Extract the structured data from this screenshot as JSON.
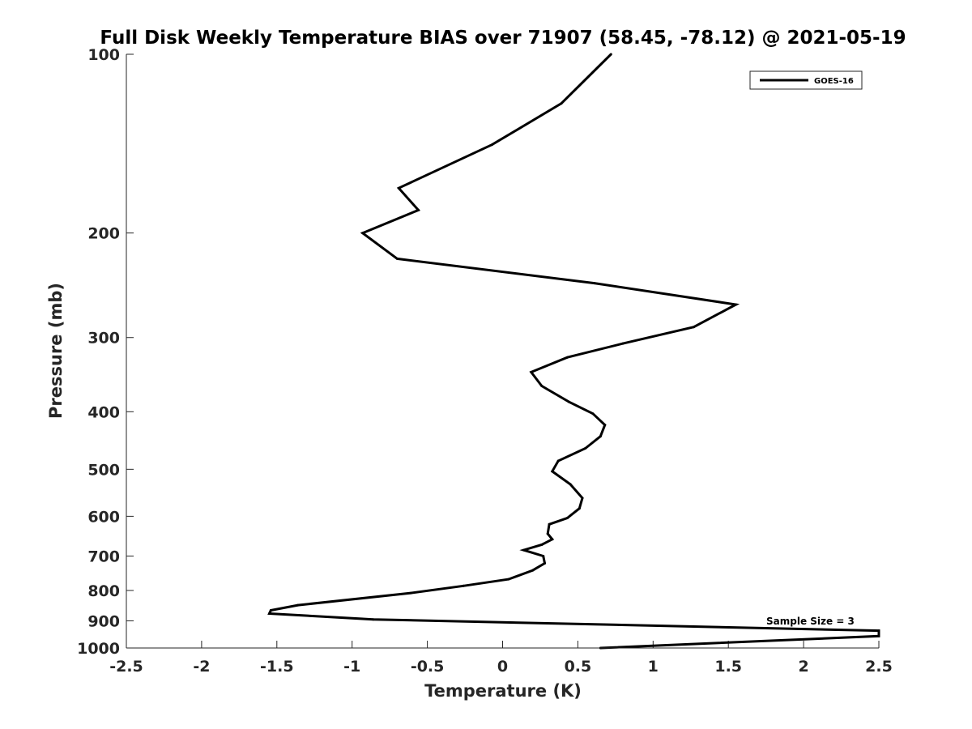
{
  "chart_data": {
    "type": "line",
    "title": "Full Disk Weekly Temperature BIAS over 71907 (58.45, -78.12) @ 2021-05-19",
    "xlabel": "Temperature (K)",
    "ylabel": "Pressure (mb)",
    "xlim": [
      -2.5,
      2.5
    ],
    "ylim": [
      100,
      1000
    ],
    "y_scale": "log",
    "y_reversed": true,
    "x_ticks": [
      "-2.5",
      "-2",
      "-1.5",
      "-1",
      "-0.5",
      "0",
      "0.5",
      "1",
      "1.5",
      "2",
      "2.5"
    ],
    "x_tick_values": [
      -2.5,
      -2,
      -1.5,
      -1,
      -0.5,
      0,
      0.5,
      1,
      1.5,
      2,
      2.5
    ],
    "y_ticks": [
      "100",
      "200",
      "300",
      "400",
      "500",
      "600",
      "700",
      "800",
      "900",
      "1000"
    ],
    "y_tick_values": [
      100,
      200,
      300,
      400,
      500,
      600,
      700,
      800,
      900,
      1000
    ],
    "grid": false,
    "legend_position": "top-right",
    "series": [
      {
        "name": "GOES-16",
        "color": "#000000",
        "points": [
          [
            0.72,
            100
          ],
          [
            0.39,
            121
          ],
          [
            -0.07,
            142
          ],
          [
            -0.69,
            168
          ],
          [
            -0.56,
            183
          ],
          [
            -0.93,
            200
          ],
          [
            -0.7,
            221
          ],
          [
            0.61,
            243
          ],
          [
            1.55,
            264
          ],
          [
            1.27,
            288
          ],
          [
            0.8,
            307
          ],
          [
            0.43,
            324
          ],
          [
            0.19,
            343
          ],
          [
            0.26,
            362
          ],
          [
            0.44,
            385
          ],
          [
            0.6,
            403
          ],
          [
            0.68,
            421
          ],
          [
            0.65,
            440
          ],
          [
            0.55,
            461
          ],
          [
            0.37,
            484
          ],
          [
            0.33,
            504
          ],
          [
            0.45,
            530
          ],
          [
            0.53,
            559
          ],
          [
            0.51,
            582
          ],
          [
            0.43,
            604
          ],
          [
            0.31,
            619
          ],
          [
            0.3,
            642
          ],
          [
            0.33,
            656
          ],
          [
            0.26,
            670
          ],
          [
            0.14,
            684
          ],
          [
            0.27,
            700
          ],
          [
            0.28,
            720
          ],
          [
            0.2,
            740
          ],
          [
            0.04,
            766
          ],
          [
            -0.26,
            786
          ],
          [
            -0.61,
            808
          ],
          [
            -1.36,
            847
          ],
          [
            -1.54,
            864
          ],
          [
            -1.55,
            875
          ],
          [
            -0.86,
            895
          ],
          [
            2.5,
            935
          ],
          [
            2.5,
            955
          ],
          [
            0.65,
            1000
          ]
        ]
      }
    ],
    "annotations": [
      {
        "text": "Sample Size = 3"
      }
    ]
  }
}
